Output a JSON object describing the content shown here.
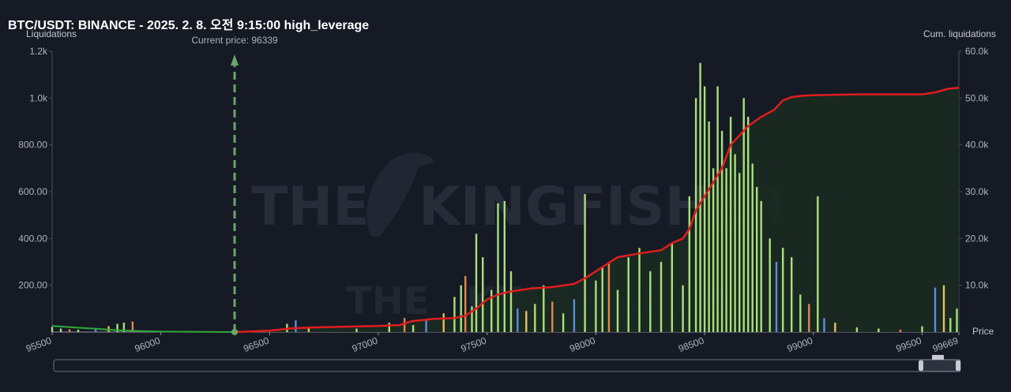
{
  "header": {
    "title": "BTC/USDT: BINANCE - 2025. 2. 8. 오전 9:15:00 high_leverage"
  },
  "watermark": {
    "text_left": "THE",
    "text_right": "KINGFISHER"
  },
  "chart_data": {
    "type": "bar",
    "title": "BTC/USDT: BINANCE - 2025. 2. 8. 오전 9:15:00 high_leverage",
    "ylabel": "Liquidations",
    "y2label": "Cum. liquidations",
    "xlabel": "Price",
    "current_price_label": "Current price: 96339",
    "current_price": 96339,
    "xlim": [
      95500,
      99669
    ],
    "ylim": [
      0,
      1200
    ],
    "y2lim": [
      0,
      60000
    ],
    "x_ticks": [
      "95500",
      "96000",
      "96500",
      "97000",
      "97500",
      "98000",
      "98500",
      "99000",
      "99500",
      "99669"
    ],
    "y_ticks": [
      "200.00",
      "400.00",
      "600.00",
      "800.00",
      "1.0k",
      "1.2k"
    ],
    "y2_ticks": [
      "10.0k",
      "20.0k",
      "30.0k",
      "40.0k",
      "50.0k",
      "60.0k"
    ],
    "grid": false,
    "colors": {
      "bar_primary": "#a8e07a",
      "bar_orange": "#e0894a",
      "bar_blue": "#5b8fd6",
      "bar_yellow": "#e3c25a",
      "cum_line": "#e11d1d",
      "cum_fill": "#1b2a22",
      "short_line": "#2eaa3a",
      "current_marker": "#6aa56a"
    },
    "bars": [
      {
        "x": 95500,
        "y": 22
      },
      {
        "x": 95540,
        "y": 15
      },
      {
        "x": 95580,
        "y": 12
      },
      {
        "x": 95620,
        "y": 10
      },
      {
        "x": 95700,
        "y": 18
      },
      {
        "x": 95760,
        "y": 25
      },
      {
        "x": 95800,
        "y": 35
      },
      {
        "x": 95830,
        "y": 40
      },
      {
        "x": 95870,
        "y": 45
      },
      {
        "x": 96580,
        "y": 35
      },
      {
        "x": 96620,
        "y": 50
      },
      {
        "x": 96680,
        "y": 20
      },
      {
        "x": 96900,
        "y": 15
      },
      {
        "x": 97050,
        "y": 40
      },
      {
        "x": 97120,
        "y": 60
      },
      {
        "x": 97160,
        "y": 30
      },
      {
        "x": 97220,
        "y": 50
      },
      {
        "x": 97300,
        "y": 80
      },
      {
        "x": 97350,
        "y": 150
      },
      {
        "x": 97380,
        "y": 200
      },
      {
        "x": 97400,
        "y": 240
      },
      {
        "x": 97430,
        "y": 110
      },
      {
        "x": 97450,
        "y": 420
      },
      {
        "x": 97480,
        "y": 320
      },
      {
        "x": 97520,
        "y": 180
      },
      {
        "x": 97550,
        "y": 550
      },
      {
        "x": 97580,
        "y": 560
      },
      {
        "x": 97610,
        "y": 260
      },
      {
        "x": 97640,
        "y": 100
      },
      {
        "x": 97680,
        "y": 90
      },
      {
        "x": 97720,
        "y": 120
      },
      {
        "x": 97760,
        "y": 200
      },
      {
        "x": 97800,
        "y": 130
      },
      {
        "x": 97850,
        "y": 80
      },
      {
        "x": 97900,
        "y": 140
      },
      {
        "x": 97950,
        "y": 590
      },
      {
        "x": 98000,
        "y": 220
      },
      {
        "x": 98030,
        "y": 280
      },
      {
        "x": 98060,
        "y": 300
      },
      {
        "x": 98100,
        "y": 180
      },
      {
        "x": 98150,
        "y": 320
      },
      {
        "x": 98200,
        "y": 360
      },
      {
        "x": 98250,
        "y": 260
      },
      {
        "x": 98300,
        "y": 300
      },
      {
        "x": 98350,
        "y": 380
      },
      {
        "x": 98400,
        "y": 200
      },
      {
        "x": 98430,
        "y": 580
      },
      {
        "x": 98460,
        "y": 1000
      },
      {
        "x": 98480,
        "y": 1150
      },
      {
        "x": 98500,
        "y": 1050
      },
      {
        "x": 98520,
        "y": 900
      },
      {
        "x": 98540,
        "y": 700
      },
      {
        "x": 98560,
        "y": 1050
      },
      {
        "x": 98580,
        "y": 860
      },
      {
        "x": 98600,
        "y": 700
      },
      {
        "x": 98620,
        "y": 920
      },
      {
        "x": 98640,
        "y": 760
      },
      {
        "x": 98660,
        "y": 680
      },
      {
        "x": 98680,
        "y": 1000
      },
      {
        "x": 98700,
        "y": 920
      },
      {
        "x": 98720,
        "y": 720
      },
      {
        "x": 98740,
        "y": 620
      },
      {
        "x": 98760,
        "y": 560
      },
      {
        "x": 98800,
        "y": 400
      },
      {
        "x": 98830,
        "y": 300
      },
      {
        "x": 98860,
        "y": 360
      },
      {
        "x": 98900,
        "y": 320
      },
      {
        "x": 98940,
        "y": 160
      },
      {
        "x": 98980,
        "y": 120
      },
      {
        "x": 99020,
        "y": 580
      },
      {
        "x": 99050,
        "y": 60
      },
      {
        "x": 99100,
        "y": 40
      },
      {
        "x": 99200,
        "y": 20
      },
      {
        "x": 99300,
        "y": 15
      },
      {
        "x": 99400,
        "y": 10
      },
      {
        "x": 99500,
        "y": 25
      },
      {
        "x": 99560,
        "y": 190
      },
      {
        "x": 99600,
        "y": 200
      },
      {
        "x": 99630,
        "y": 60
      },
      {
        "x": 99660,
        "y": 100
      }
    ],
    "cumulative": [
      {
        "x": 96339,
        "y": 0
      },
      {
        "x": 96500,
        "y": 300
      },
      {
        "x": 96600,
        "y": 800
      },
      {
        "x": 96700,
        "y": 1000
      },
      {
        "x": 96800,
        "y": 1100
      },
      {
        "x": 96900,
        "y": 1200
      },
      {
        "x": 97000,
        "y": 1300
      },
      {
        "x": 97100,
        "y": 1500
      },
      {
        "x": 97150,
        "y": 2300
      },
      {
        "x": 97250,
        "y": 2800
      },
      {
        "x": 97350,
        "y": 3000
      },
      {
        "x": 97400,
        "y": 3500
      },
      {
        "x": 97450,
        "y": 5000
      },
      {
        "x": 97500,
        "y": 7000
      },
      {
        "x": 97550,
        "y": 8000
      },
      {
        "x": 97600,
        "y": 8600
      },
      {
        "x": 97700,
        "y": 9300
      },
      {
        "x": 97800,
        "y": 9600
      },
      {
        "x": 97900,
        "y": 10300
      },
      {
        "x": 97950,
        "y": 11500
      },
      {
        "x": 98000,
        "y": 13000
      },
      {
        "x": 98050,
        "y": 14500
      },
      {
        "x": 98100,
        "y": 16000
      },
      {
        "x": 98200,
        "y": 16800
      },
      {
        "x": 98300,
        "y": 17500
      },
      {
        "x": 98350,
        "y": 19000
      },
      {
        "x": 98400,
        "y": 20000
      },
      {
        "x": 98430,
        "y": 22000
      },
      {
        "x": 98460,
        "y": 26000
      },
      {
        "x": 98500,
        "y": 29000
      },
      {
        "x": 98540,
        "y": 32000
      },
      {
        "x": 98580,
        "y": 35000
      },
      {
        "x": 98620,
        "y": 40000
      },
      {
        "x": 98660,
        "y": 42000
      },
      {
        "x": 98700,
        "y": 44000
      },
      {
        "x": 98760,
        "y": 46000
      },
      {
        "x": 98820,
        "y": 47500
      },
      {
        "x": 98860,
        "y": 49500
      },
      {
        "x": 98900,
        "y": 50200
      },
      {
        "x": 98950,
        "y": 50500
      },
      {
        "x": 99000,
        "y": 50600
      },
      {
        "x": 99200,
        "y": 50800
      },
      {
        "x": 99500,
        "y": 50800
      },
      {
        "x": 99560,
        "y": 51200
      },
      {
        "x": 99620,
        "y": 52000
      },
      {
        "x": 99669,
        "y": 52200
      }
    ],
    "short_cumulative": [
      {
        "x": 95500,
        "y": 1300
      },
      {
        "x": 95600,
        "y": 1000
      },
      {
        "x": 95700,
        "y": 700
      },
      {
        "x": 95800,
        "y": 400
      },
      {
        "x": 95900,
        "y": 200
      },
      {
        "x": 96000,
        "y": 100
      },
      {
        "x": 96200,
        "y": 30
      },
      {
        "x": 96339,
        "y": 0
      }
    ]
  }
}
